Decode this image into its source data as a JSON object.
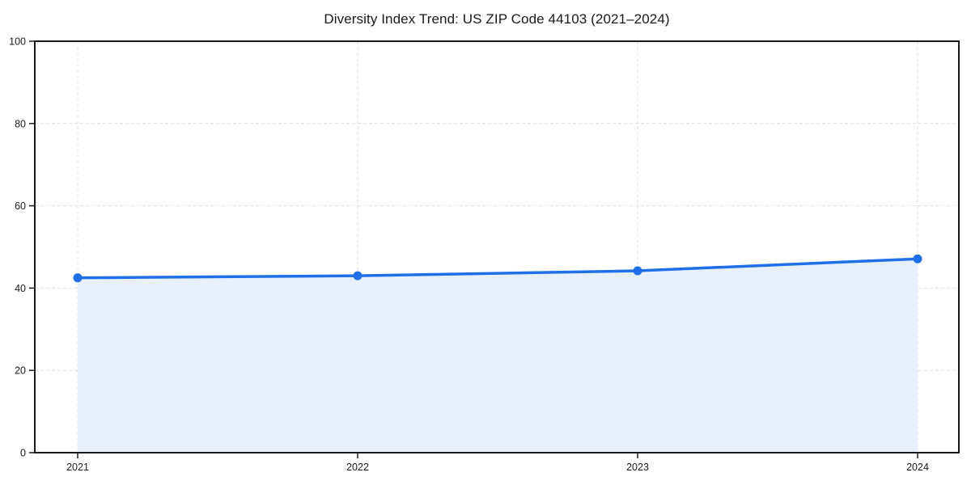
{
  "chart_data": {
    "type": "line",
    "area_fill": true,
    "title": "Diversity Index Trend: US ZIP Code 44103 (2021–2024)",
    "x": [
      "2021",
      "2022",
      "2023",
      "2024"
    ],
    "series": [
      {
        "name": "Diversity Index",
        "values": [
          42.5,
          43.0,
          44.2,
          47.1
        ]
      }
    ],
    "xlabel": "",
    "ylabel": "",
    "ylim": [
      0,
      100
    ],
    "yticks": [
      0,
      20,
      40,
      60,
      80,
      100
    ],
    "grid": "dashed-both-axes",
    "legend": "none",
    "marker": "circle",
    "colors": {
      "line": "#1f6fe8",
      "marker": "#1f6fe8",
      "area": "#e8f0fd",
      "grid": "#dedede",
      "axis": "#1a1a1a",
      "text": "#1a1a1a",
      "background": "#ffffff"
    }
  }
}
